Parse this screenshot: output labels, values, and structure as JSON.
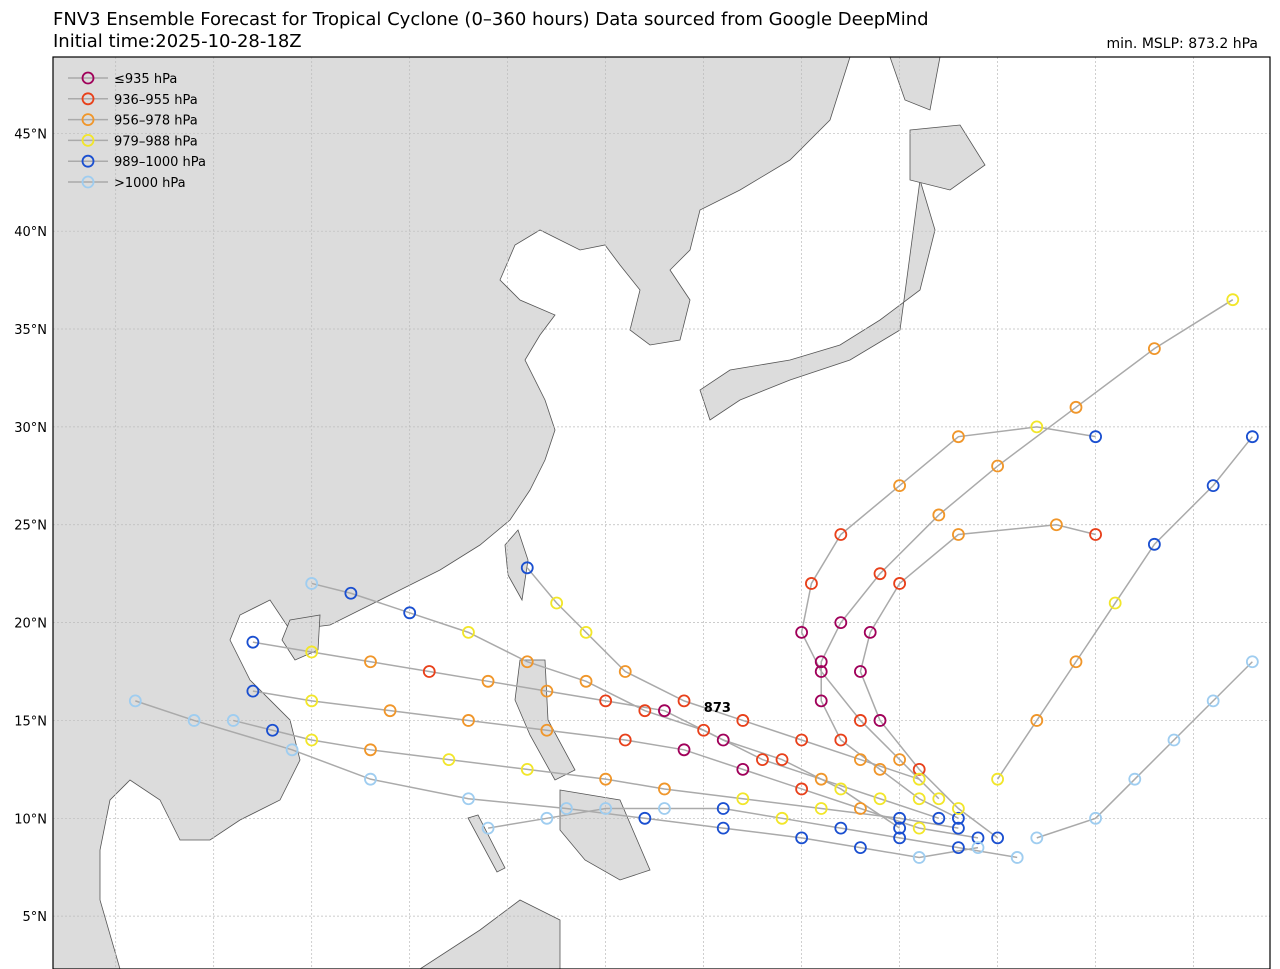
{
  "map": {
    "title": "FNV3 Ensemble Forecast for Tropical Cyclone (0–360 hours) Data sourced from Google DeepMind",
    "subtitle": "Initial time:2025-10-28-18Z",
    "min_mslp": "min. MSLP: 873.2 hPa",
    "lonlim": [
      96.8,
      158.9
    ],
    "latlim": [
      2.3,
      48.9
    ],
    "lon_gridlines": [
      100,
      105,
      110,
      115,
      120,
      125,
      130,
      135,
      140,
      145,
      150,
      155
    ],
    "lat_ticks": [
      {
        "value": 5,
        "label": "5°N"
      },
      {
        "value": 10,
        "label": "10°N"
      },
      {
        "value": 15,
        "label": "15°N"
      },
      {
        "value": 20,
        "label": "20°N"
      },
      {
        "value": 25,
        "label": "25°N"
      },
      {
        "value": 30,
        "label": "30°N"
      },
      {
        "value": 35,
        "label": "35°N"
      },
      {
        "value": 40,
        "label": "40°N"
      },
      {
        "value": 45,
        "label": "45°N"
      }
    ],
    "legend": [
      {
        "label": "≤935 hPa",
        "color": "#a0005a"
      },
      {
        "label": "936–955 hPa",
        "color": "#e8401a"
      },
      {
        "label": "956–978 hPa",
        "color": "#f0962a"
      },
      {
        "label": "979–988 hPa",
        "color": "#f2e62a"
      },
      {
        "label": "989–1000 hPa",
        "color": "#1a4fd0"
      },
      {
        "label": ">1000 hPa",
        "color": "#9fcdf0"
      }
    ],
    "annotation": {
      "text": "873",
      "lon": 130.7,
      "lat": 15.7
    },
    "tracks": [
      {
        "points": [
          [
            143,
            9.5,
            4
          ],
          [
            140,
            10,
            4
          ],
          [
            136,
            10.5,
            3
          ],
          [
            132,
            11,
            3
          ],
          [
            128,
            11.5,
            2
          ],
          [
            125,
            12,
            2
          ],
          [
            121,
            12.5,
            3
          ],
          [
            117,
            13,
            3
          ],
          [
            113,
            13.5,
            2
          ],
          [
            110,
            14,
            3
          ],
          [
            108,
            14.5,
            4
          ],
          [
            106,
            15,
            5
          ]
        ]
      },
      {
        "points": [
          [
            144,
            9,
            4
          ],
          [
            141,
            9.5,
            3
          ],
          [
            138,
            10.5,
            2
          ],
          [
            135,
            11.5,
            1
          ],
          [
            132,
            12.5,
            0
          ],
          [
            129,
            13.5,
            0
          ],
          [
            126,
            14,
            1
          ],
          [
            122,
            14.5,
            2
          ],
          [
            118,
            15,
            2
          ],
          [
            114,
            15.5,
            2
          ],
          [
            110,
            16,
            3
          ],
          [
            107,
            16.5,
            4
          ]
        ]
      },
      {
        "points": [
          [
            143,
            10,
            4
          ],
          [
            141,
            11,
            3
          ],
          [
            139,
            12.5,
            2
          ],
          [
            137,
            14,
            1
          ],
          [
            136,
            16,
            0
          ],
          [
            136,
            18,
            0
          ],
          [
            137,
            20,
            0
          ],
          [
            139,
            22.5,
            1
          ],
          [
            142,
            25.5,
            2
          ],
          [
            145,
            28,
            2
          ],
          [
            149,
            31,
            2
          ],
          [
            153,
            34,
            2
          ],
          [
            157,
            36.5,
            3
          ]
        ]
      },
      {
        "points": [
          [
            145,
            9,
            4
          ],
          [
            143,
            10.5,
            3
          ],
          [
            141,
            12.5,
            1
          ],
          [
            139,
            15,
            0
          ],
          [
            138,
            17.5,
            0
          ],
          [
            138.5,
            19.5,
            0
          ],
          [
            140,
            22,
            1
          ],
          [
            143,
            24.5,
            2
          ],
          [
            148,
            25,
            2
          ],
          [
            150,
            24.5,
            1
          ]
        ]
      },
      {
        "points": [
          [
            142,
            11,
            3
          ],
          [
            140,
            13,
            2
          ],
          [
            138,
            15,
            1
          ],
          [
            136,
            17.5,
            0
          ],
          [
            135,
            19.5,
            0
          ],
          [
            135.5,
            22,
            1
          ],
          [
            137,
            24.5,
            1
          ],
          [
            140,
            27,
            2
          ],
          [
            143,
            29.5,
            2
          ],
          [
            147,
            30,
            3
          ],
          [
            150,
            29.5,
            4
          ]
        ]
      },
      {
        "points": [
          [
            146,
            8,
            5
          ],
          [
            143,
            8.5,
            4
          ],
          [
            140,
            9,
            4
          ],
          [
            137,
            9.5,
            4
          ],
          [
            134,
            10,
            3
          ],
          [
            131,
            10.5,
            4
          ],
          [
            128,
            10.5,
            5
          ],
          [
            125,
            10.5,
            5
          ],
          [
            122,
            10,
            5
          ],
          [
            119,
            9.5,
            5
          ]
        ]
      },
      {
        "points": [
          [
            142,
            10,
            4
          ],
          [
            139,
            11,
            3
          ],
          [
            136,
            12,
            2
          ],
          [
            133,
            13,
            1
          ],
          [
            130,
            14.5,
            1
          ],
          [
            127,
            15.5,
            1
          ],
          [
            124,
            17,
            2
          ],
          [
            121,
            18,
            2
          ],
          [
            118,
            19.5,
            3
          ],
          [
            115,
            20.5,
            4
          ],
          [
            112,
            21.5,
            4
          ],
          [
            110,
            22,
            5
          ]
        ]
      },
      {
        "points": [
          [
            147,
            9,
            5
          ],
          [
            150,
            10,
            5
          ],
          [
            152,
            12,
            5
          ],
          [
            154,
            14,
            5
          ],
          [
            156,
            16,
            5
          ],
          [
            158,
            18,
            5
          ]
        ]
      },
      {
        "points": [
          [
            145,
            12,
            3
          ],
          [
            147,
            15,
            2
          ],
          [
            149,
            18,
            2
          ],
          [
            151,
            21,
            3
          ],
          [
            153,
            24,
            4
          ],
          [
            156,
            27,
            4
          ],
          [
            158,
            29.5,
            4
          ]
        ]
      },
      {
        "points": [
          [
            141,
            12,
            3
          ],
          [
            138,
            13,
            2
          ],
          [
            135,
            14,
            1
          ],
          [
            132,
            15,
            1
          ],
          [
            129,
            16,
            1
          ],
          [
            126,
            17.5,
            2
          ],
          [
            124,
            19.5,
            3
          ],
          [
            122.5,
            21,
            3
          ],
          [
            121,
            22.8,
            4
          ]
        ]
      },
      {
        "points": [
          [
            144,
            8.5,
            5
          ],
          [
            141,
            8,
            5
          ],
          [
            138,
            8.5,
            4
          ],
          [
            135,
            9,
            4
          ],
          [
            131,
            9.5,
            4
          ],
          [
            127,
            10,
            4
          ],
          [
            123,
            10.5,
            5
          ],
          [
            118,
            11,
            5
          ],
          [
            113,
            12,
            5
          ],
          [
            109,
            13.5,
            5
          ],
          [
            104,
            15,
            5
          ],
          [
            101,
            16,
            5
          ]
        ]
      },
      {
        "points": [
          [
            140,
            9.5,
            4
          ],
          [
            137,
            11.5,
            3
          ],
          [
            134,
            13,
            1
          ],
          [
            131,
            14,
            0
          ],
          [
            128,
            15.5,
            0
          ],
          [
            125,
            16,
            1
          ],
          [
            122,
            16.5,
            2
          ],
          [
            119,
            17,
            2
          ],
          [
            116,
            17.5,
            1
          ],
          [
            113,
            18,
            2
          ],
          [
            110,
            18.5,
            3
          ],
          [
            107,
            19,
            4
          ]
        ]
      }
    ]
  }
}
